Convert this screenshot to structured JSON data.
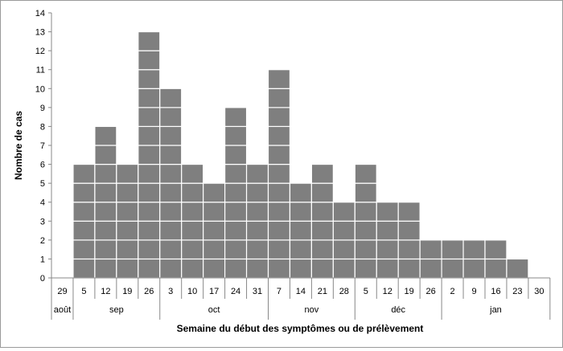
{
  "chart_data": {
    "type": "bar",
    "style": "epidemic-curve (stacked unit squares)",
    "ylabel": "Nombre de cas",
    "xlabel": "Semaine du début des symptômes ou de prélèvement",
    "ylim": [
      0,
      14
    ],
    "yticks": [
      "0",
      "1",
      "2",
      "3",
      "4",
      "5",
      "6",
      "7",
      "8",
      "9",
      "10",
      "11",
      "12",
      "13",
      "14"
    ],
    "categories": [
      "29",
      "5",
      "12",
      "19",
      "26",
      "3",
      "10",
      "17",
      "24",
      "31",
      "7",
      "14",
      "21",
      "28",
      "5",
      "12",
      "19",
      "26",
      "2",
      "9",
      "16",
      "23",
      "30"
    ],
    "values": [
      0,
      6,
      8,
      6,
      13,
      10,
      6,
      5,
      9,
      6,
      11,
      5,
      6,
      4,
      6,
      4,
      4,
      2,
      2,
      2,
      2,
      1,
      0
    ],
    "month_groups": [
      {
        "label": "août",
        "start": 0,
        "count": 1
      },
      {
        "label": "sep",
        "start": 1,
        "count": 4
      },
      {
        "label": "oct",
        "start": 5,
        "count": 5
      },
      {
        "label": "nov",
        "start": 10,
        "count": 4
      },
      {
        "label": "déc",
        "start": 14,
        "count": 4
      },
      {
        "label": "jan",
        "start": 18,
        "count": 5
      }
    ],
    "bar_color": "#7f7f7f",
    "cell_border_color": "#ffffff",
    "grid": false
  }
}
